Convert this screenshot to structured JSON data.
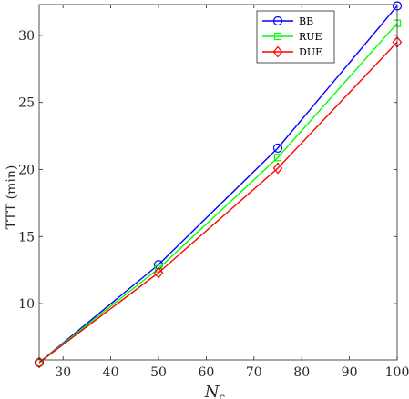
{
  "chart_data": {
    "type": "line",
    "xlabel": "N",
    "xlabel_sub": "c",
    "ylabel": "TTT (min)",
    "xlim": [
      25,
      100
    ],
    "ylim": [
      5.8,
      32.3
    ],
    "xticks": [
      30,
      40,
      50,
      60,
      70,
      80,
      90,
      100
    ],
    "yticks": [
      10,
      15,
      20,
      25,
      30
    ],
    "grid": false,
    "legend_position": "top-right",
    "x": [
      25,
      50,
      75,
      100
    ],
    "series": [
      {
        "name": "BB",
        "values": [
          5.6,
          12.9,
          21.6,
          32.2
        ],
        "color": "#0000ff",
        "marker": "circle"
      },
      {
        "name": "RUE",
        "values": [
          5.6,
          12.6,
          20.9,
          30.9
        ],
        "color": "#00ff00",
        "marker": "square"
      },
      {
        "name": "DUE",
        "values": [
          5.6,
          12.3,
          20.1,
          29.5
        ],
        "color": "#ff0000",
        "marker": "diamond"
      }
    ]
  }
}
